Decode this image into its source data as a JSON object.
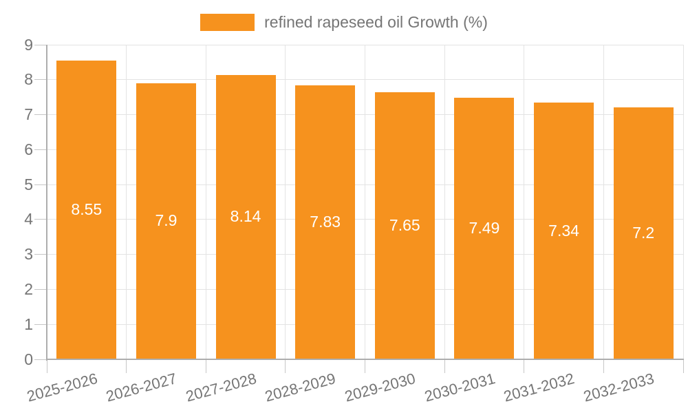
{
  "chart_data": {
    "type": "bar",
    "title": "",
    "legend": "refined rapeseed oil Growth (%)",
    "legend_position": "top-center",
    "categories": [
      "2025-2026",
      "2026-2027",
      "2027-2028",
      "2028-2029",
      "2029-2030",
      "2030-2031",
      "2031-2032",
      "2032-2033"
    ],
    "values": [
      8.55,
      7.9,
      8.14,
      7.83,
      7.65,
      7.49,
      7.34,
      7.2
    ],
    "value_labels": [
      "8.55",
      "7.9",
      "8.14",
      "7.83",
      "7.65",
      "7.49",
      "7.34",
      "7.2"
    ],
    "xlabel": "",
    "ylabel": "",
    "ylim": [
      0,
      9
    ],
    "yticks": [
      0,
      1,
      2,
      3,
      4,
      5,
      6,
      7,
      8,
      9
    ],
    "grid": true,
    "colors": {
      "bar": "#F6921E",
      "value_label": "#FFFFFF",
      "axis_text": "#757575",
      "axis_line": "#ADADAD",
      "gridline": "#E3E3E3",
      "tick": "#C6C6C6"
    }
  }
}
